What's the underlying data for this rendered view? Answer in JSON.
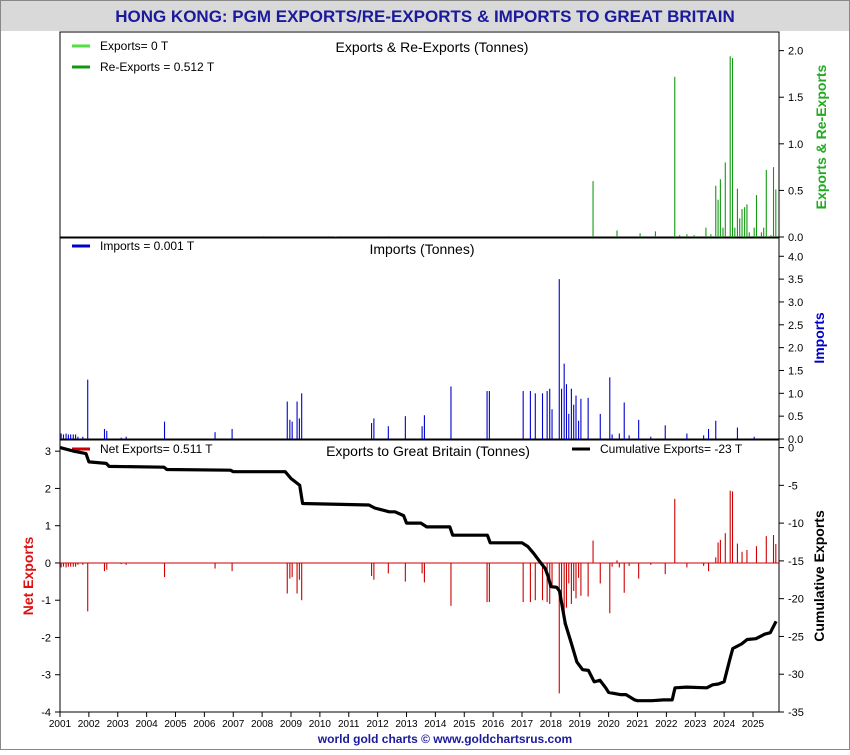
{
  "page": {
    "title": "HONG KONG: PGM EXPORTS/RE-EXPORTS & IMPORTS TO GREAT BRITAIN",
    "footer": "world gold charts © www.goldchartsrus.com"
  },
  "colors": {
    "header_bg": "#d9d9d9",
    "title": "#1a1a9c",
    "exports": "#55dd44",
    "reexports": "#119911",
    "imports": "#0000cc",
    "net": "#cc0000",
    "cumulative": "#000000"
  },
  "chart_data": [
    {
      "type": "bar",
      "title": "Exports & Re-Exports (Tonnes)",
      "ylabel": "Exports & Re-Exports",
      "ylabel_color": "#22aa22",
      "ylim": [
        0,
        2.2
      ],
      "yticks": [
        "0.0",
        "0.5",
        "1.0",
        "1.5",
        "2.0"
      ],
      "ytick_values": [
        0,
        0.5,
        1,
        1.5,
        2
      ],
      "legend": [
        {
          "label": "Exports= 0 T",
          "color": "#55dd44"
        },
        {
          "label": "Re-Exports = 0.512 T",
          "color": "#119911"
        }
      ],
      "series": [
        {
          "name": "Re-Exports",
          "x": [
            2008.05,
            2010.55,
            2012.4,
            2019.46,
            2020.29,
            2021.09,
            2021.62,
            2022.29,
            2022.46,
            2022.71,
            2022.96,
            2023.37,
            2023.54,
            2023.71,
            2023.79,
            2023.87,
            2023.96,
            2024.04,
            2024.21,
            2024.29,
            2024.37,
            2024.46,
            2024.54,
            2024.62,
            2024.71,
            2024.79,
            2024.87,
            2025.04,
            2025.12,
            2025.29,
            2025.37,
            2025.46,
            2025.62,
            2025.71,
            2025.79
          ],
          "values": [
            0.01,
            0.005,
            0.01,
            0.6,
            0.07,
            0.04,
            0.06,
            1.72,
            0.02,
            0.03,
            0.02,
            0.1,
            0.03,
            0.55,
            0.4,
            0.62,
            0.1,
            0.8,
            1.94,
            1.92,
            0.1,
            0.52,
            0.2,
            0.3,
            0.32,
            0.35,
            0.05,
            0.1,
            0.45,
            0.05,
            0.1,
            0.72,
            0.02,
            0.75,
            0.51
          ]
        }
      ]
    },
    {
      "type": "bar",
      "title": "Imports (Tonnes)",
      "ylabel": "Imports",
      "ylabel_color": "#0000cc",
      "ylim": [
        0,
        4.4
      ],
      "yticks": [
        "0.0",
        "0.5",
        "1.0",
        "1.5",
        "2.0",
        "2.5",
        "3.0",
        "3.5",
        "4.0"
      ],
      "ytick_values": [
        0,
        0.5,
        1,
        1.5,
        2,
        2.5,
        3,
        3.5,
        4
      ],
      "legend": [
        {
          "label": "Imports = 0.001 T",
          "color": "#0000cc"
        }
      ],
      "series": [
        {
          "name": "Imports",
          "x": [
            2001.04,
            2001.12,
            2001.21,
            2001.29,
            2001.37,
            2001.46,
            2001.54,
            2001.62,
            2001.79,
            2001.96,
            2002.54,
            2002.62,
            2003.12,
            2003.29,
            2004.62,
            2006.37,
            2006.96,
            2008.87,
            2008.96,
            2009.04,
            2009.21,
            2009.29,
            2009.37,
            2011.79,
            2011.87,
            2012.37,
            2012.96,
            2013.54,
            2013.62,
            2014.54,
            2015.79,
            2015.87,
            2017.04,
            2017.29,
            2017.46,
            2017.71,
            2017.87,
            2017.96,
            2018.04,
            2018.29,
            2018.37,
            2018.46,
            2018.54,
            2018.62,
            2018.71,
            2018.79,
            2018.87,
            2018.96,
            2019.04,
            2019.29,
            2019.71,
            2020.04,
            2020.12,
            2020.37,
            2020.54,
            2020.71,
            2021.04,
            2021.46,
            2021.96,
            2022.71,
            2023.29,
            2023.46,
            2023.71,
            2024.46,
            2025.04
          ],
          "values": [
            0.12,
            0.1,
            0.12,
            0.1,
            0.1,
            0.1,
            0.1,
            0.05,
            0.05,
            1.3,
            0.22,
            0.18,
            0.03,
            0.05,
            0.38,
            0.15,
            0.22,
            0.82,
            0.42,
            0.38,
            0.82,
            0.45,
            1.0,
            0.35,
            0.45,
            0.28,
            0.5,
            0.28,
            0.52,
            1.15,
            1.05,
            1.05,
            1.05,
            1.05,
            1.0,
            1.0,
            1.05,
            1.1,
            0.65,
            3.5,
            1.1,
            1.65,
            1.2,
            0.55,
            1.1,
            0.75,
            0.95,
            0.4,
            0.88,
            0.9,
            0.55,
            1.35,
            0.1,
            0.12,
            0.8,
            0.08,
            0.42,
            0.05,
            0.3,
            0.12,
            0.08,
            0.22,
            0.4,
            0.25,
            0.05
          ]
        }
      ]
    },
    {
      "type": "bar",
      "title": "Exports to Great Britain (Tonnes)",
      "ylabel": "Net Exports",
      "ylabel_color": "#dd1111",
      "ylim": [
        -4,
        3.3
      ],
      "yticks": [
        "-4",
        "-3",
        "-2",
        "-1",
        "0",
        "1",
        "2",
        "3"
      ],
      "ytick_values": [
        -4,
        -3,
        -2,
        -1,
        0,
        1,
        2,
        3
      ],
      "y2label": "Cumulative Exports",
      "y2lim": [
        -35,
        1
      ],
      "y2ticks": [
        "-35",
        "-30",
        "-25",
        "-20",
        "-15",
        "-10",
        "-5",
        "0"
      ],
      "y2tick_values": [
        -35,
        -30,
        -25,
        -20,
        -15,
        -10,
        -5,
        0
      ],
      "legend": [
        {
          "label": "Net Exports= 0.511 T",
          "color": "#cc0000"
        },
        {
          "label": "Cumulative Exports= -23 T",
          "color": "#000000"
        }
      ],
      "xlim": [
        2001,
        2025.9
      ],
      "xticks": [
        "2001",
        "2002",
        "2003",
        "2004",
        "2005",
        "2006",
        "2007",
        "2008",
        "2009",
        "2010",
        "2011",
        "2012",
        "2013",
        "2014",
        "2015",
        "2016",
        "2017",
        "2018",
        "2019",
        "2020",
        "2021",
        "2022",
        "2023",
        "2024",
        "2025"
      ],
      "series": [
        {
          "name": "Net Exports",
          "x": [
            2001.04,
            2001.12,
            2001.21,
            2001.29,
            2001.37,
            2001.46,
            2001.54,
            2001.62,
            2001.79,
            2001.96,
            2002.54,
            2002.62,
            2003.12,
            2003.29,
            2004.62,
            2006.37,
            2006.96,
            2008.87,
            2008.96,
            2009.04,
            2009.21,
            2009.29,
            2009.37,
            2011.79,
            2011.87,
            2012.37,
            2012.96,
            2013.54,
            2013.62,
            2014.54,
            2015.79,
            2015.87,
            2017.04,
            2017.29,
            2017.46,
            2017.71,
            2017.87,
            2017.96,
            2018.04,
            2018.29,
            2018.37,
            2018.46,
            2018.54,
            2018.62,
            2018.71,
            2018.79,
            2018.87,
            2018.96,
            2019.04,
            2019.29,
            2019.46,
            2019.71,
            2020.04,
            2020.12,
            2020.29,
            2020.37,
            2020.54,
            2020.71,
            2021.04,
            2021.46,
            2021.96,
            2022.29,
            2022.71,
            2023.29,
            2023.46,
            2023.71,
            2023.79,
            2023.87,
            2024.04,
            2024.21,
            2024.29,
            2024.46,
            2024.62,
            2024.79,
            2025.12,
            2025.46,
            2025.71,
            2025.79
          ],
          "values": [
            -0.12,
            -0.1,
            -0.12,
            -0.1,
            -0.1,
            -0.1,
            -0.1,
            -0.05,
            -0.05,
            -1.3,
            -0.22,
            -0.18,
            -0.03,
            -0.05,
            -0.38,
            -0.15,
            -0.22,
            -0.82,
            -0.42,
            -0.38,
            -0.82,
            -0.45,
            -1.0,
            -0.35,
            -0.45,
            -0.28,
            -0.5,
            -0.28,
            -0.52,
            -1.15,
            -1.05,
            -1.05,
            -1.05,
            -1.05,
            -1.0,
            -1.0,
            -1.05,
            -1.1,
            -0.65,
            -3.5,
            -1.1,
            -1.65,
            -1.2,
            -0.55,
            -1.1,
            -0.75,
            -0.95,
            -0.4,
            -0.88,
            -0.9,
            0.6,
            -0.55,
            -1.35,
            -0.1,
            0.07,
            -0.12,
            -0.8,
            -0.08,
            -0.42,
            -0.05,
            -0.3,
            1.72,
            -0.12,
            -0.08,
            -0.22,
            0.15,
            0.55,
            0.62,
            0.8,
            1.94,
            1.92,
            0.52,
            0.3,
            0.35,
            0.45,
            0.72,
            0.75,
            0.51
          ]
        },
        {
          "name": "Cumulative Exports",
          "axis": "right",
          "x": [
            2001.0,
            2001.5,
            2001.9,
            2002.0,
            2002.6,
            2002.7,
            2004.6,
            2004.7,
            2006.9,
            2007.0,
            2008.8,
            2009.0,
            2009.3,
            2009.4,
            2011.7,
            2011.9,
            2012.4,
            2012.6,
            2012.9,
            2013.0,
            2013.5,
            2013.7,
            2014.5,
            2014.6,
            2015.8,
            2015.9,
            2017.0,
            2017.2,
            2017.4,
            2017.6,
            2017.8,
            2017.9,
            2018.0,
            2018.2,
            2018.3,
            2018.5,
            2018.7,
            2018.9,
            2019.1,
            2019.3,
            2019.5,
            2019.7,
            2019.9,
            2020.0,
            2020.4,
            2020.6,
            2020.9,
            2021.0,
            2021.5,
            2021.9,
            2022.2,
            2022.3,
            2022.7,
            2023.4,
            2023.6,
            2023.8,
            2024.0,
            2024.2,
            2024.3,
            2024.6,
            2024.8,
            2025.1,
            2025.4,
            2025.6,
            2025.8
          ],
          "values": [
            0,
            -0.5,
            -0.8,
            -1.9,
            -2.1,
            -2.5,
            -2.6,
            -2.9,
            -3.0,
            -3.2,
            -3.2,
            -4.1,
            -5.0,
            -7.4,
            -7.6,
            -8.0,
            -8.5,
            -8.5,
            -9.0,
            -10.0,
            -10.0,
            -10.5,
            -10.5,
            -11.6,
            -11.6,
            -12.6,
            -12.6,
            -13.1,
            -14.0,
            -15.0,
            -16.0,
            -17.0,
            -18.4,
            -18.5,
            -19.0,
            -23.3,
            -25.8,
            -28.4,
            -29.4,
            -29.5,
            -31.0,
            -30.8,
            -31.8,
            -32.4,
            -32.7,
            -32.7,
            -33.4,
            -33.5,
            -33.5,
            -33.4,
            -33.4,
            -31.8,
            -31.7,
            -31.8,
            -31.4,
            -31.3,
            -31.0,
            -28.0,
            -26.6,
            -26.0,
            -25.4,
            -25.3,
            -24.7,
            -24.5,
            -23.0
          ]
        }
      ]
    }
  ]
}
